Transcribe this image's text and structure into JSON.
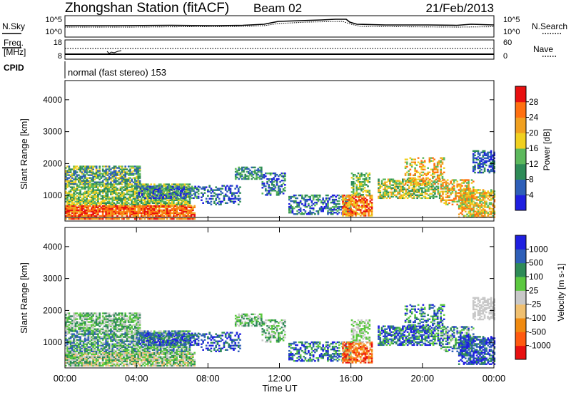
{
  "header": {
    "station": "Zhongshan Station (fitACF)",
    "beam": "Beam 02",
    "date": "21/Feb/2013"
  },
  "sky_panel": {
    "left_label": "N.Sky",
    "right_label": "N.Search",
    "top_tick": "10^5",
    "bottom_tick": "10^0"
  },
  "freq_panel": {
    "left_label_1": "Freq.",
    "left_label_2": "[MHz]",
    "left_top_tick": "18",
    "left_bottom_tick": "8",
    "right_label": "Nave",
    "right_top_tick": "60",
    "right_bottom_tick": "0"
  },
  "cpid": {
    "label": "CPID",
    "mode": "normal (fast stereo) 153"
  },
  "colors": {
    "power": [
      "#1f1fe0",
      "#2e5fb8",
      "#2e8b57",
      "#5cb85c",
      "#f0d020",
      "#f0a020",
      "#ff7010",
      "#e81010"
    ],
    "velocity": [
      "#e81010",
      "#ff5a10",
      "#f08a10",
      "#f0c070",
      "#c8c8c8",
      "#5cc840",
      "#2e8b57",
      "#2e5fb8",
      "#1f1fe0"
    ]
  },
  "chart_data": [
    {
      "type": "heatmap",
      "name": "power",
      "ylabel": "Slant Range [km]",
      "yticks": [
        "4000",
        "3000",
        "2000",
        "1000"
      ],
      "ylim": [
        200,
        4600
      ],
      "colorbar_label": "Power [dB]",
      "colorbar_ticks": [
        "28",
        "24",
        "20",
        "16",
        "12",
        "8",
        "4"
      ],
      "colorbar_range": [
        0,
        30
      ]
    },
    {
      "type": "heatmap",
      "name": "velocity",
      "ylabel": "Slant Range [km]",
      "yticks": [
        "4000",
        "3000",
        "2000",
        "1000"
      ],
      "ylim": [
        200,
        4600
      ],
      "xlabel": "Time UT",
      "xticks": [
        "00:00",
        "04:00",
        "08:00",
        "12:00",
        "16:00",
        "20:00",
        "00:00"
      ],
      "colorbar_label": "Velocity [m s-1]",
      "colorbar_ticks": [
        "1000",
        "500",
        "100",
        "25",
        "-25",
        "-100",
        "-500",
        "-1000"
      ],
      "colorbar_range": [
        -1000,
        1000
      ]
    }
  ]
}
